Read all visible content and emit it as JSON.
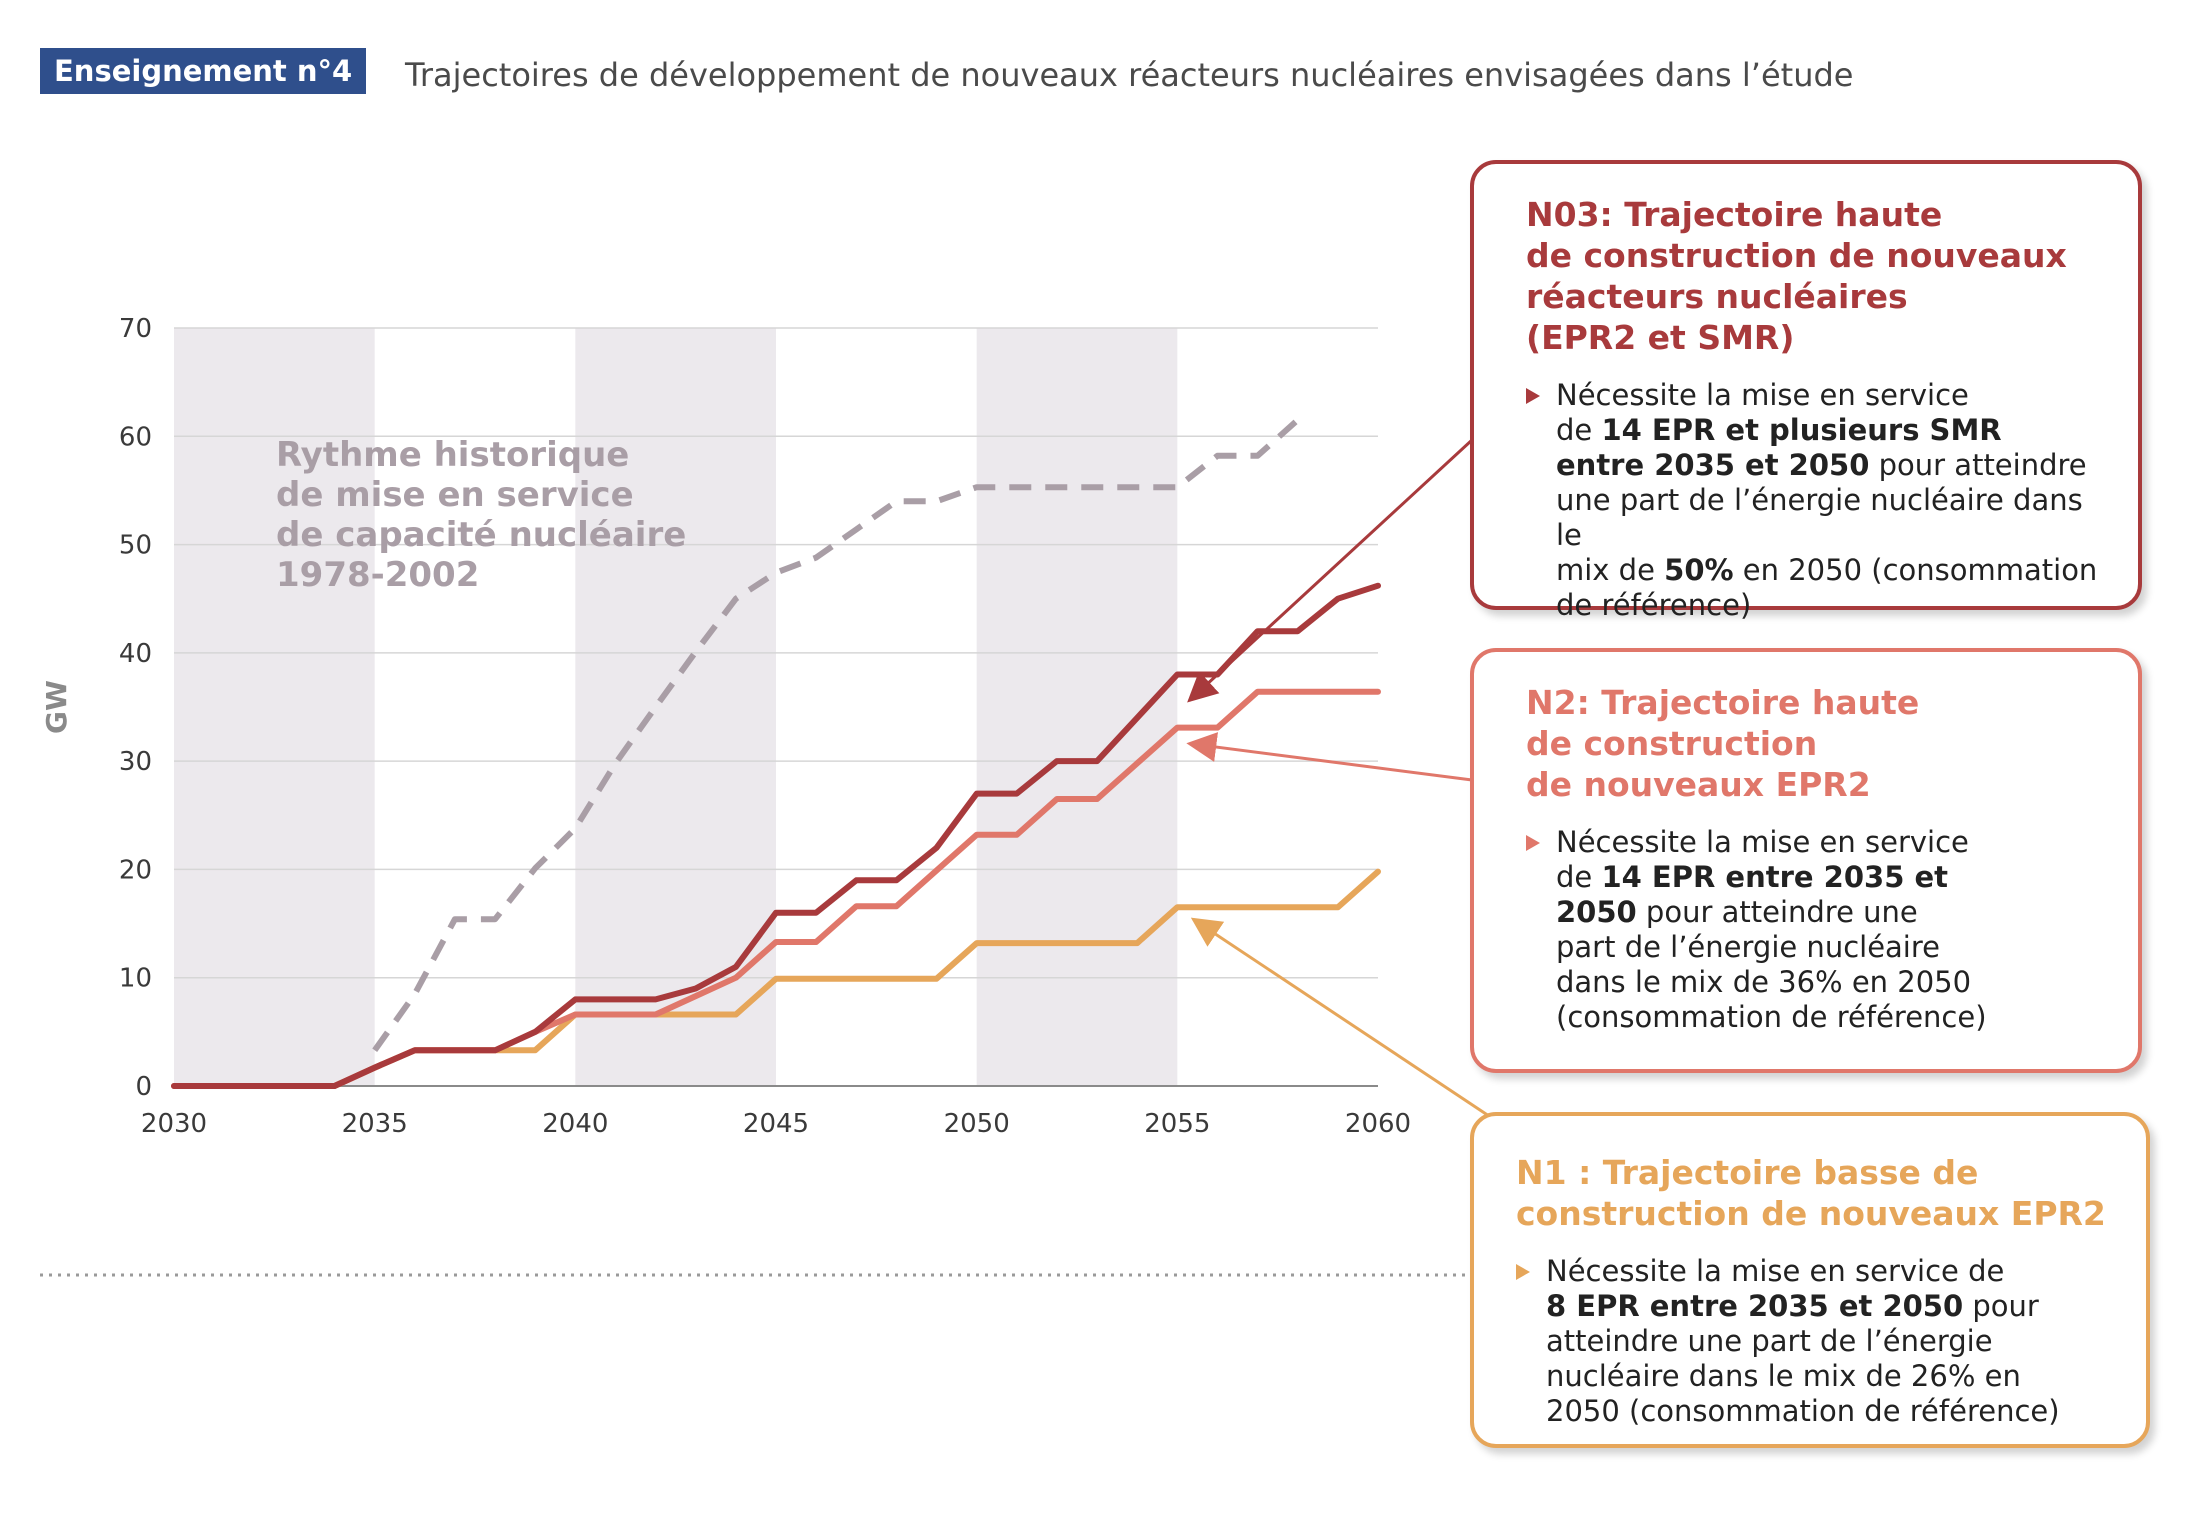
{
  "header": {
    "badge": "Enseignement n°4",
    "title": "Trajectoires de développement de nouveaux réacteurs nucléaires envisagées dans l’étude"
  },
  "colors": {
    "n03": "#a83a3c",
    "n2": "#e0776a",
    "n1": "#e6a65a",
    "historique": "#a99ea6",
    "band": "#ece9ed",
    "grid": "#d6d6d6",
    "axis_text": "#3a3a3a"
  },
  "chart_data": {
    "type": "line",
    "ylabel": "GW",
    "xlim": [
      2030,
      2060
    ],
    "ylim": [
      0,
      70
    ],
    "x_ticks": [
      2030,
      2035,
      2040,
      2045,
      2050,
      2055,
      2060
    ],
    "y_ticks": [
      0,
      10,
      20,
      30,
      40,
      50,
      60,
      70
    ],
    "grid": "horizontal",
    "shaded_bands": [
      [
        2030,
        2035
      ],
      [
        2040,
        2045
      ],
      [
        2050,
        2055
      ]
    ],
    "annotation": [
      "Rythme historique",
      "de mise en service",
      "de capacité nucléaire",
      "1978-2002"
    ],
    "series": [
      {
        "key": "historique",
        "style": "dashed",
        "x": [
          2035,
          2036,
          2037,
          2038,
          2039,
          2040,
          2041,
          2042,
          2043,
          2044,
          2045,
          2046,
          2047,
          2048,
          2049,
          2050,
          2051,
          2052,
          2053,
          2054,
          2055,
          2056,
          2057,
          2058
        ],
        "values": [
          3.3,
          8.5,
          15.4,
          15.4,
          20.1,
          23.8,
          29.8,
          35.0,
          40.1,
          45.0,
          47.4,
          48.8,
          51.4,
          54.0,
          54.0,
          55.3,
          55.3,
          55.3,
          55.3,
          55.3,
          55.3,
          58.2,
          58.2,
          61.5
        ]
      },
      {
        "key": "n03",
        "style": "solid",
        "x": [
          2030,
          2031,
          2032,
          2033,
          2034,
          2035,
          2036,
          2037,
          2038,
          2039,
          2040,
          2041,
          2042,
          2043,
          2044,
          2045,
          2046,
          2047,
          2048,
          2049,
          2050,
          2051,
          2052,
          2053,
          2054,
          2055,
          2056,
          2057,
          2058,
          2059,
          2060
        ],
        "values": [
          0,
          0,
          0,
          0,
          0,
          1.7,
          3.3,
          3.3,
          3.3,
          5.0,
          8.0,
          8.0,
          8.0,
          9.0,
          11.0,
          16.0,
          16.0,
          19.0,
          19.0,
          22.0,
          27.0,
          27.0,
          30.0,
          30.0,
          34.0,
          38.0,
          38.0,
          42.0,
          42.0,
          45.0,
          46.2
        ]
      },
      {
        "key": "n2",
        "style": "solid",
        "x": [
          2030,
          2031,
          2032,
          2033,
          2034,
          2035,
          2036,
          2037,
          2038,
          2039,
          2040,
          2041,
          2042,
          2043,
          2044,
          2045,
          2046,
          2047,
          2048,
          2049,
          2050,
          2051,
          2052,
          2053,
          2054,
          2055,
          2056,
          2057,
          2058,
          2059,
          2060
        ],
        "values": [
          0,
          0,
          0,
          0,
          0,
          1.7,
          3.3,
          3.3,
          3.3,
          5.0,
          6.6,
          6.6,
          6.6,
          8.3,
          10.0,
          13.3,
          13.3,
          16.6,
          16.6,
          19.9,
          23.2,
          23.2,
          26.5,
          26.5,
          29.8,
          33.1,
          33.1,
          36.4,
          36.4,
          36.4,
          36.4
        ]
      },
      {
        "key": "n1",
        "style": "solid",
        "x": [
          2030,
          2031,
          2032,
          2033,
          2034,
          2035,
          2036,
          2037,
          2038,
          2039,
          2040,
          2041,
          2042,
          2043,
          2044,
          2045,
          2046,
          2047,
          2048,
          2049,
          2050,
          2051,
          2052,
          2053,
          2054,
          2055,
          2056,
          2057,
          2058,
          2059,
          2060
        ],
        "values": [
          0,
          0,
          0,
          0,
          0,
          1.7,
          3.3,
          3.3,
          3.3,
          3.3,
          6.6,
          6.6,
          6.6,
          6.6,
          6.6,
          9.9,
          9.9,
          9.9,
          9.9,
          9.9,
          13.2,
          13.2,
          13.2,
          13.2,
          13.2,
          16.5,
          16.5,
          16.5,
          16.5,
          16.5,
          19.8
        ]
      }
    ]
  },
  "callouts": {
    "n03": {
      "title": [
        "N03: Trajectoire haute",
        "de construction de nouveaux",
        "réacteurs nucléaires",
        "(EPR2 et SMR)"
      ],
      "desc": [
        {
          "t": "Nécessite la mise en service"
        },
        {
          "t": "de "
        },
        {
          "t": "14 EPR et plusieurs SMR",
          "b": true
        },
        {
          "t": "entre 2035 et 2050",
          "b": true
        },
        {
          "t": " pour atteindre"
        },
        {
          "t": "une part de l’énergie nucléaire dans le"
        },
        {
          "t": "mix de "
        },
        {
          "t": "50%",
          "b": true
        },
        {
          "t": " en 2050 (consommation"
        },
        {
          "t": "de référence)"
        }
      ]
    },
    "n2": {
      "title": [
        "N2: Trajectoire haute",
        "de construction",
        "de nouveaux EPR2"
      ],
      "desc": [
        {
          "t": "Nécessite la mise en service"
        },
        {
          "t": "de "
        },
        {
          "t": "14 EPR entre 2035 et",
          "b": true
        },
        {
          "t": "2050",
          "b": true
        },
        {
          "t": " pour atteindre une"
        },
        {
          "t": "part de l’énergie nucléaire"
        },
        {
          "t": "dans le mix de 36% en 2050"
        },
        {
          "t": "(consommation de référence)"
        }
      ]
    },
    "n1": {
      "title": [
        "N1 : Trajectoire basse de",
        "construction de nouveaux EPR2"
      ],
      "desc": [
        {
          "t": "Nécessite la mise en service de"
        },
        {
          "t": "8 EPR entre 2035 et 2050",
          "b": true
        },
        {
          "t": " pour"
        },
        {
          "t": "atteindre une part de l’énergie"
        },
        {
          "t": "nucléaire dans le mix de 26% en"
        },
        {
          "t": "2050 (consommation de référence)"
        }
      ]
    }
  }
}
